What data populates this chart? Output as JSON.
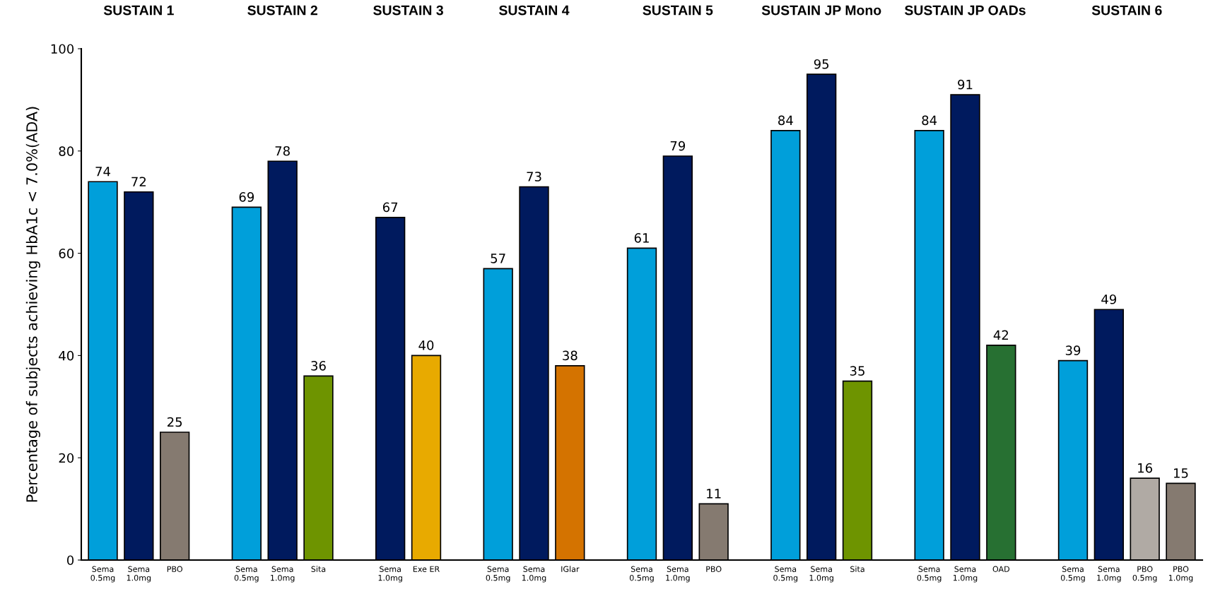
{
  "chart_data": {
    "type": "bar",
    "ylabel": "Percentage of subjects achieving HbA1c < 7.0%(ADA)",
    "categories": [
      "Sema\n0.5mg",
      "Sema\n1.0mg",
      "PBO",
      null,
      "Sema\n0.5mg",
      "Sema\n1.0mg",
      "Sita",
      null,
      "Sema\n1.0mg",
      "Exe ER",
      null,
      "Sema\n0.5mg",
      "Sema\n1.0mg",
      "IGlar",
      null,
      "Sema\n0.5mg",
      "Sema\n1.0mg",
      "PBO",
      null,
      "Sema\n0.5mg",
      "Sema\n1.0mg",
      "Sita",
      null,
      "Sema\n0.5mg",
      "Sema\n1.0mg",
      "OAD",
      null,
      "Sema\n0.5mg",
      "Sema\n1.0mg",
      "PBO\n0.5mg",
      "PBO\n1.0mg"
    ],
    "values": [
      74,
      72,
      25,
      null,
      69,
      78,
      36,
      null,
      67,
      40,
      null,
      57,
      73,
      38,
      null,
      61,
      79,
      11,
      null,
      84,
      95,
      35,
      null,
      84,
      91,
      42,
      null,
      39,
      49,
      16,
      15
    ],
    "colors": [
      "#009fda",
      "#001a5e",
      "#857a70",
      null,
      "#009fda",
      "#001a5e",
      "#6e9400",
      null,
      "#001a5e",
      "#e8aa00",
      null,
      "#009fda",
      "#001a5e",
      "#d47300",
      null,
      "#009fda",
      "#001a5e",
      "#857a70",
      null,
      "#009fda",
      "#001a5e",
      "#6e9400",
      null,
      "#009fda",
      "#001a5e",
      "#277032",
      null,
      "#009fda",
      "#001a5e",
      "#b0aaa4",
      "#857a70"
    ],
    "ylim": [
      0,
      100
    ],
    "yticks": [
      0,
      20,
      40,
      60,
      80,
      100
    ],
    "annotations": [
      "SUSTAIN 1",
      "SUSTAIN 2",
      "SUSTAIN 3",
      "SUSTAIN 4",
      "SUSTAIN 5",
      "SUSTAIN JP Mono",
      "SUSTAIN JP OADs",
      "SUSTAIN 6"
    ],
    "data_labels": true,
    "grid": false
  }
}
